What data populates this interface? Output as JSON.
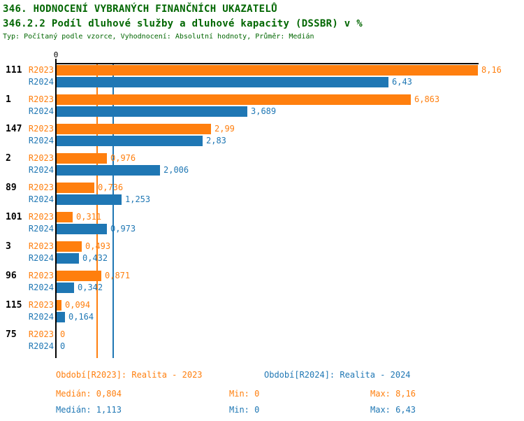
{
  "header": {
    "title": "346. HODNOCENÍ VYBRANÝCH FINANČNÍCH UKAZATELŮ",
    "subtitle": "346.2.2 Podíl dluhové služby a dluhové kapacity (DSSBR) v %",
    "meta": "Typ: Počítaný podle vzorce, Vyhodnocení: Absolutní hodnoty, Průměr: Medián"
  },
  "colors": {
    "title_green": "#006600",
    "r2023_orange": "#ff7f0e",
    "r2024_blue": "#1f77b4",
    "axis_black": "#000000"
  },
  "chart_data": {
    "type": "bar",
    "orientation": "horizontal",
    "title": "346.2.2 Podíl dluhové služby a dluhové kapacity (DSSBR) v %",
    "axis": {
      "zero_label": "0",
      "max_value": 8.16,
      "grid": false
    },
    "legend_position": "none",
    "categories": [
      "111",
      "1",
      "147",
      "2",
      "89",
      "101",
      "3",
      "96",
      "115",
      "75"
    ],
    "series": [
      {
        "name": "R2023",
        "color": "#ff7f0e",
        "values": [
          8.16,
          6.863,
          2.99,
          0.976,
          0.736,
          0.311,
          0.493,
          0.871,
          0.094,
          0
        ],
        "labels": [
          "8,16",
          "6,863",
          "2,99",
          "0,976",
          "0,736",
          "0,311",
          "0,493",
          "0,871",
          "0,094",
          "0"
        ]
      },
      {
        "name": "R2024",
        "color": "#1f77b4",
        "values": [
          6.43,
          3.689,
          2.83,
          2.006,
          1.253,
          0.973,
          0.432,
          0.342,
          0.164,
          0
        ],
        "labels": [
          "6,43",
          "3,689",
          "2,83",
          "2,006",
          "1,253",
          "0,973",
          "0,432",
          "0,342",
          "0,164",
          "0"
        ]
      }
    ],
    "medians": {
      "R2023": 0.804,
      "R2024": 1.113
    }
  },
  "footer": {
    "period_r2023": "Období[R2023]: Realita - 2023",
    "period_r2024": "Období[R2024]: Realita - 2024",
    "median_r2023": "Medián: 0,804",
    "min_r2023": "Min: 0",
    "max_r2023": "Max: 8,16",
    "median_r2024": "Medián: 1,113",
    "min_r2024": "Min: 0",
    "max_r2024": "Max: 6,43"
  }
}
